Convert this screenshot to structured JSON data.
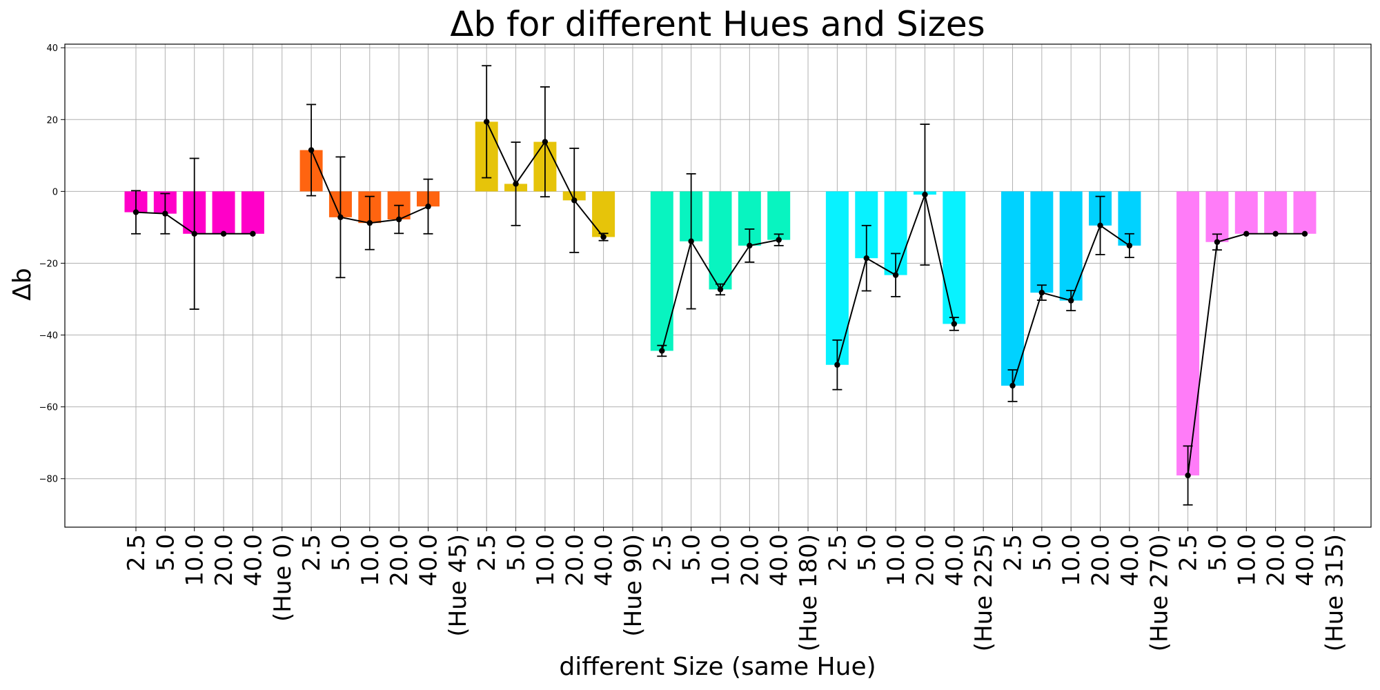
{
  "chart_data": {
    "type": "bar",
    "title": "Δb for different Hues and Sizes",
    "xlabel": "different Size (same Hue)",
    "ylabel": "Δb",
    "ylim": [
      -93.5,
      41
    ],
    "yticks": [
      40,
      20,
      0,
      -20,
      -40,
      -60,
      -80
    ],
    "grid": true,
    "groups": [
      {
        "label": "(Hue 0)",
        "color": "#ff00c8",
        "sizes": [
          "2.5",
          "5.0",
          "10.0",
          "20.0",
          "40.0"
        ],
        "values": [
          -5.8,
          -6.2,
          -11.8,
          -11.8,
          -11.8
        ],
        "errors": [
          6.0,
          5.6,
          21.0,
          0,
          0
        ]
      },
      {
        "label": "(Hue 45)",
        "color": "#ff6410",
        "sizes": [
          "2.5",
          "5.0",
          "10.0",
          "20.0",
          "40.0"
        ],
        "values": [
          11.5,
          -7.2,
          -8.8,
          -7.8,
          -4.2
        ],
        "errors": [
          12.7,
          16.8,
          7.4,
          3.9,
          7.6
        ]
      },
      {
        "label": "(Hue 90)",
        "color": "#e6c40a",
        "sizes": [
          "2.5",
          "5.0",
          "10.0",
          "20.0",
          "40.0"
        ],
        "values": [
          19.4,
          2.1,
          13.8,
          -2.5,
          -12.7
        ],
        "errors": [
          15.6,
          11.6,
          15.3,
          14.5,
          1.0
        ]
      },
      {
        "label": "(Hue 180)",
        "color": "#08f4c0",
        "sizes": [
          "2.5",
          "5.0",
          "10.0",
          "20.0",
          "40.0"
        ],
        "values": [
          -44.4,
          -13.9,
          -27.3,
          -15.1,
          -13.5
        ],
        "errors": [
          1.5,
          18.8,
          1.5,
          4.6,
          1.6
        ]
      },
      {
        "label": "(Hue 225)",
        "color": "#08f2ff",
        "sizes": [
          "2.5",
          "5.0",
          "10.0",
          "20.0",
          "40.0"
        ],
        "values": [
          -48.3,
          -18.6,
          -23.3,
          -0.9,
          -36.9
        ],
        "errors": [
          6.9,
          9.1,
          6.0,
          19.6,
          1.8
        ]
      },
      {
        "label": "(Hue 270)",
        "color": "#00d2ff",
        "sizes": [
          "2.5",
          "5.0",
          "10.0",
          "20.0",
          "40.0"
        ],
        "values": [
          -54.1,
          -28.2,
          -30.4,
          -9.5,
          -15.1
        ],
        "errors": [
          4.4,
          2.1,
          2.8,
          8.1,
          3.3
        ]
      },
      {
        "label": "(Hue 315)",
        "color": "#ff7cf8",
        "sizes": [
          "2.5",
          "5.0",
          "10.0",
          "20.0",
          "40.0"
        ],
        "values": [
          -79.1,
          -14.1,
          -11.8,
          -11.8,
          -11.8
        ],
        "errors": [
          8.2,
          2.2,
          0,
          0,
          0
        ]
      }
    ]
  }
}
